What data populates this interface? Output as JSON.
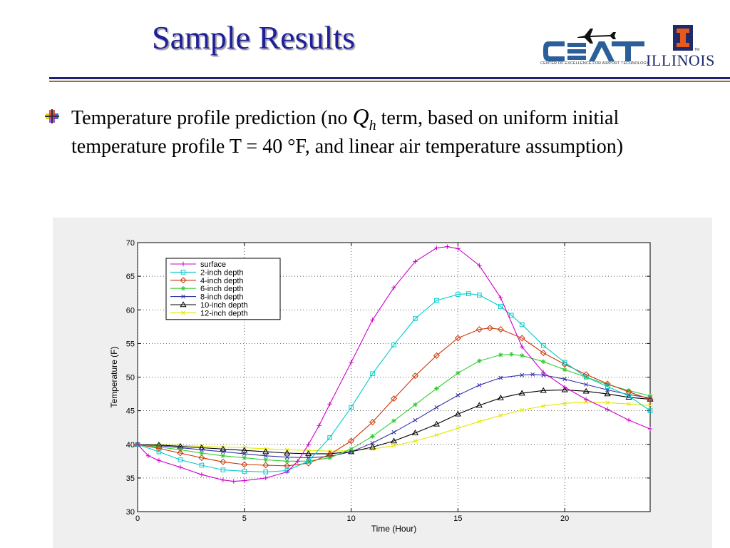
{
  "slide": {
    "title": "Sample Results",
    "logos": {
      "cat_text": "CENTER OF EXCELLENCE FOR AIRPORT TECHNOLOGY",
      "illinois": "ILLINOIS",
      "tm": "TM"
    },
    "bullet": {
      "pre": "Temperature profile prediction (no ",
      "q": "Q",
      "sub": "h",
      "post": " term, based on uniform initial temperature profile T = 40 °F, and linear air temperature assumption)"
    },
    "colors": {
      "title": "#1f1f9a",
      "rule": "#1f1f7a",
      "rule_accent": "#8a7a2a"
    }
  },
  "chart_data": {
    "type": "line",
    "title": "",
    "xlabel": "Time (Hour)",
    "ylabel": "Temperature (F)",
    "xlim": [
      0,
      24
    ],
    "ylim": [
      30,
      70
    ],
    "xticks": [
      0,
      5,
      10,
      15,
      20
    ],
    "yticks": [
      30,
      35,
      40,
      45,
      50,
      55,
      60,
      65,
      70
    ],
    "grid": true,
    "legend_position": "top-left",
    "series": [
      {
        "name": "surface",
        "color": "#cc00cc",
        "marker": "plus",
        "points": [
          [
            0,
            40
          ],
          [
            0.5,
            38.3
          ],
          [
            1,
            37.6
          ],
          [
            2,
            36.6
          ],
          [
            3,
            35.5
          ],
          [
            4,
            34.7
          ],
          [
            4.5,
            34.5
          ],
          [
            5,
            34.6
          ],
          [
            6,
            35
          ],
          [
            7,
            35.9
          ],
          [
            7.5,
            37.5
          ],
          [
            8,
            40
          ],
          [
            8.5,
            42.8
          ],
          [
            9,
            46
          ],
          [
            10,
            52.2
          ],
          [
            11,
            58.5
          ],
          [
            12,
            63.3
          ],
          [
            13,
            67.2
          ],
          [
            14,
            69.2
          ],
          [
            14.5,
            69.4
          ],
          [
            15,
            69.1
          ],
          [
            16,
            66.6
          ],
          [
            17,
            61.8
          ],
          [
            18,
            54.5
          ],
          [
            19,
            50.7
          ],
          [
            20,
            48.5
          ],
          [
            21,
            46.7
          ],
          [
            22,
            45.2
          ],
          [
            23,
            43.6
          ],
          [
            24,
            42.3
          ]
        ]
      },
      {
        "name": "2-inch depth",
        "color": "#00cccc",
        "marker": "square",
        "points": [
          [
            0,
            40
          ],
          [
            1,
            38.9
          ],
          [
            2,
            37.7
          ],
          [
            3,
            36.9
          ],
          [
            4,
            36.2
          ],
          [
            5,
            36
          ],
          [
            6,
            35.9
          ],
          [
            7,
            36.1
          ],
          [
            8,
            37.5
          ],
          [
            9,
            41
          ],
          [
            10,
            45.5
          ],
          [
            11,
            50.5
          ],
          [
            12,
            54.8
          ],
          [
            13,
            58.7
          ],
          [
            14,
            61.4
          ],
          [
            15,
            62.3
          ],
          [
            15.5,
            62.4
          ],
          [
            16,
            62.2
          ],
          [
            17,
            60.5
          ],
          [
            17.5,
            59.2
          ],
          [
            18,
            57.8
          ],
          [
            19,
            54.7
          ],
          [
            20,
            52.2
          ],
          [
            21,
            50
          ],
          [
            22,
            48.6
          ],
          [
            23,
            47.2
          ],
          [
            24,
            45
          ]
        ]
      },
      {
        "name": "4-inch depth",
        "color": "#cc3300",
        "marker": "diamond",
        "points": [
          [
            0,
            40
          ],
          [
            1,
            39.4
          ],
          [
            2,
            38.7
          ],
          [
            3,
            38
          ],
          [
            4,
            37.4
          ],
          [
            5,
            37
          ],
          [
            6,
            36.9
          ],
          [
            7,
            36.8
          ],
          [
            8,
            37.2
          ],
          [
            9,
            38.5
          ],
          [
            10,
            40.5
          ],
          [
            11,
            43.3
          ],
          [
            12,
            46.8
          ],
          [
            13,
            50.2
          ],
          [
            14,
            53.2
          ],
          [
            15,
            55.8
          ],
          [
            16,
            57.1
          ],
          [
            16.5,
            57.3
          ],
          [
            17,
            57.1
          ],
          [
            18,
            55.8
          ],
          [
            19,
            53.6
          ],
          [
            20,
            51.9
          ],
          [
            21,
            50.4
          ],
          [
            22,
            49
          ],
          [
            23,
            47.8
          ],
          [
            24,
            46.7
          ]
        ]
      },
      {
        "name": "6-inch depth",
        "color": "#33cc33",
        "marker": "star",
        "points": [
          [
            0,
            40
          ],
          [
            1,
            39.6
          ],
          [
            2,
            39.2
          ],
          [
            3,
            38.7
          ],
          [
            4,
            38.3
          ],
          [
            5,
            38
          ],
          [
            6,
            37.7
          ],
          [
            7,
            37.5
          ],
          [
            8,
            37.5
          ],
          [
            9,
            38
          ],
          [
            10,
            39.3
          ],
          [
            11,
            41.2
          ],
          [
            12,
            43.5
          ],
          [
            13,
            45.9
          ],
          [
            14,
            48.3
          ],
          [
            15,
            50.6
          ],
          [
            16,
            52.4
          ],
          [
            17,
            53.3
          ],
          [
            17.5,
            53.4
          ],
          [
            18,
            53.2
          ],
          [
            19,
            52.3
          ],
          [
            20,
            51.1
          ],
          [
            21,
            50
          ],
          [
            22,
            48.9
          ],
          [
            23,
            48
          ],
          [
            24,
            47.2
          ]
        ]
      },
      {
        "name": "8-inch depth",
        "color": "#3333aa",
        "marker": "x",
        "points": [
          [
            0,
            40
          ],
          [
            1,
            39.8
          ],
          [
            2,
            39.5
          ],
          [
            3,
            39.2
          ],
          [
            4,
            38.9
          ],
          [
            5,
            38.6
          ],
          [
            6,
            38.3
          ],
          [
            7,
            38.1
          ],
          [
            8,
            38
          ],
          [
            9,
            38.2
          ],
          [
            10,
            38.9
          ],
          [
            11,
            40.2
          ],
          [
            12,
            41.8
          ],
          [
            13,
            43.6
          ],
          [
            14,
            45.5
          ],
          [
            15,
            47.3
          ],
          [
            16,
            48.8
          ],
          [
            17,
            49.9
          ],
          [
            18,
            50.3
          ],
          [
            18.5,
            50.4
          ],
          [
            19,
            50.3
          ],
          [
            20,
            49.7
          ],
          [
            21,
            48.9
          ],
          [
            22,
            48.1
          ],
          [
            23,
            47.4
          ],
          [
            24,
            46.9
          ]
        ]
      },
      {
        "name": "10-inch depth",
        "color": "#000000",
        "marker": "triangle",
        "points": [
          [
            0,
            40
          ],
          [
            1,
            39.9
          ],
          [
            2,
            39.7
          ],
          [
            3,
            39.5
          ],
          [
            4,
            39.3
          ],
          [
            5,
            39.1
          ],
          [
            6,
            38.9
          ],
          [
            7,
            38.7
          ],
          [
            8,
            38.6
          ],
          [
            9,
            38.6
          ],
          [
            10,
            38.9
          ],
          [
            11,
            39.6
          ],
          [
            12,
            40.5
          ],
          [
            13,
            41.7
          ],
          [
            14,
            43
          ],
          [
            15,
            44.5
          ],
          [
            16,
            45.8
          ],
          [
            17,
            46.9
          ],
          [
            18,
            47.6
          ],
          [
            19,
            48
          ],
          [
            20,
            48.1
          ],
          [
            21,
            47.9
          ],
          [
            22,
            47.5
          ],
          [
            23,
            47
          ],
          [
            24,
            46.7
          ]
        ]
      },
      {
        "name": "12-inch depth",
        "color": "#e6e600",
        "marker": "x",
        "points": [
          [
            0,
            40
          ],
          [
            1,
            39.95
          ],
          [
            2,
            39.85
          ],
          [
            3,
            39.7
          ],
          [
            4,
            39.6
          ],
          [
            5,
            39.5
          ],
          [
            6,
            39.35
          ],
          [
            7,
            39.2
          ],
          [
            8,
            39.1
          ],
          [
            9,
            39
          ],
          [
            10,
            39.05
          ],
          [
            11,
            39.3
          ],
          [
            12,
            39.8
          ],
          [
            13,
            40.5
          ],
          [
            14,
            41.4
          ],
          [
            15,
            42.4
          ],
          [
            16,
            43.4
          ],
          [
            17,
            44.3
          ],
          [
            18,
            45.1
          ],
          [
            19,
            45.7
          ],
          [
            20,
            46.1
          ],
          [
            21,
            46.3
          ],
          [
            22,
            46.2
          ],
          [
            23,
            46
          ],
          [
            24,
            45.8
          ]
        ]
      }
    ]
  }
}
